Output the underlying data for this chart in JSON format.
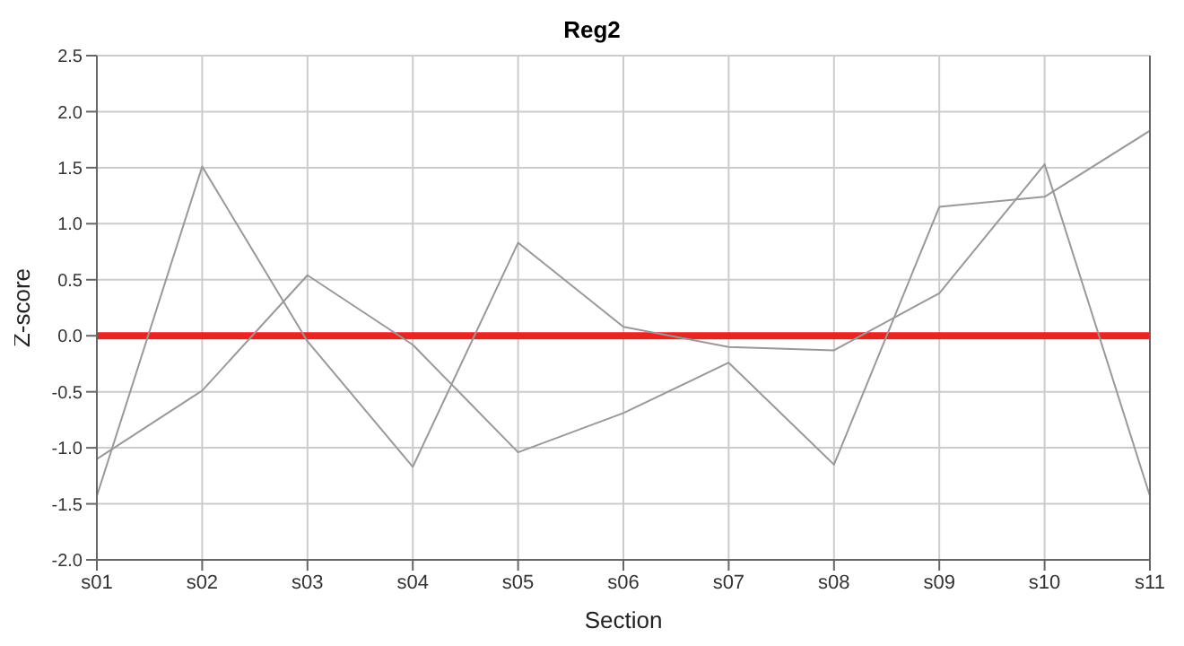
{
  "chart_data": {
    "type": "line",
    "title": "Reg2",
    "xlabel": "Section",
    "ylabel": "Z-score",
    "categories": [
      "s01",
      "s02",
      "s03",
      "s04",
      "s05",
      "s06",
      "s07",
      "s08",
      "s09",
      "s10",
      "s11"
    ],
    "series": [
      {
        "color": "#999999",
        "values": [
          -1.43,
          1.51,
          -0.05,
          -1.17,
          0.83,
          0.08,
          -0.1,
          -0.13,
          0.38,
          1.53,
          -1.43
        ]
      },
      {
        "color": "#999999",
        "values": [
          -1.1,
          -0.49,
          0.54,
          -0.08,
          -1.04,
          -0.69,
          -0.24,
          -1.15,
          1.15,
          1.24,
          1.83
        ]
      }
    ],
    "ylim": [
      -2.0,
      2.5
    ],
    "yticks": [
      {
        "value": -2,
        "label": "-2.0"
      },
      {
        "value": -1.5,
        "label": "-1.5"
      },
      {
        "value": -1,
        "label": "-1.0"
      },
      {
        "value": -0.5,
        "label": "-0.5"
      },
      {
        "value": 0,
        "label": "0.0"
      },
      {
        "value": 0.5,
        "label": "0.5"
      },
      {
        "value": 1,
        "label": "1.0"
      },
      {
        "value": 1.5,
        "label": "1.5"
      },
      {
        "value": 2,
        "label": "2.0"
      },
      {
        "value": 2.5,
        "label": "2.5"
      }
    ],
    "ref_lines": [
      {
        "axis": "y",
        "value": 0,
        "color": "#ee2222"
      }
    ],
    "grid": true,
    "marker": "none",
    "line_style": "solid"
  }
}
